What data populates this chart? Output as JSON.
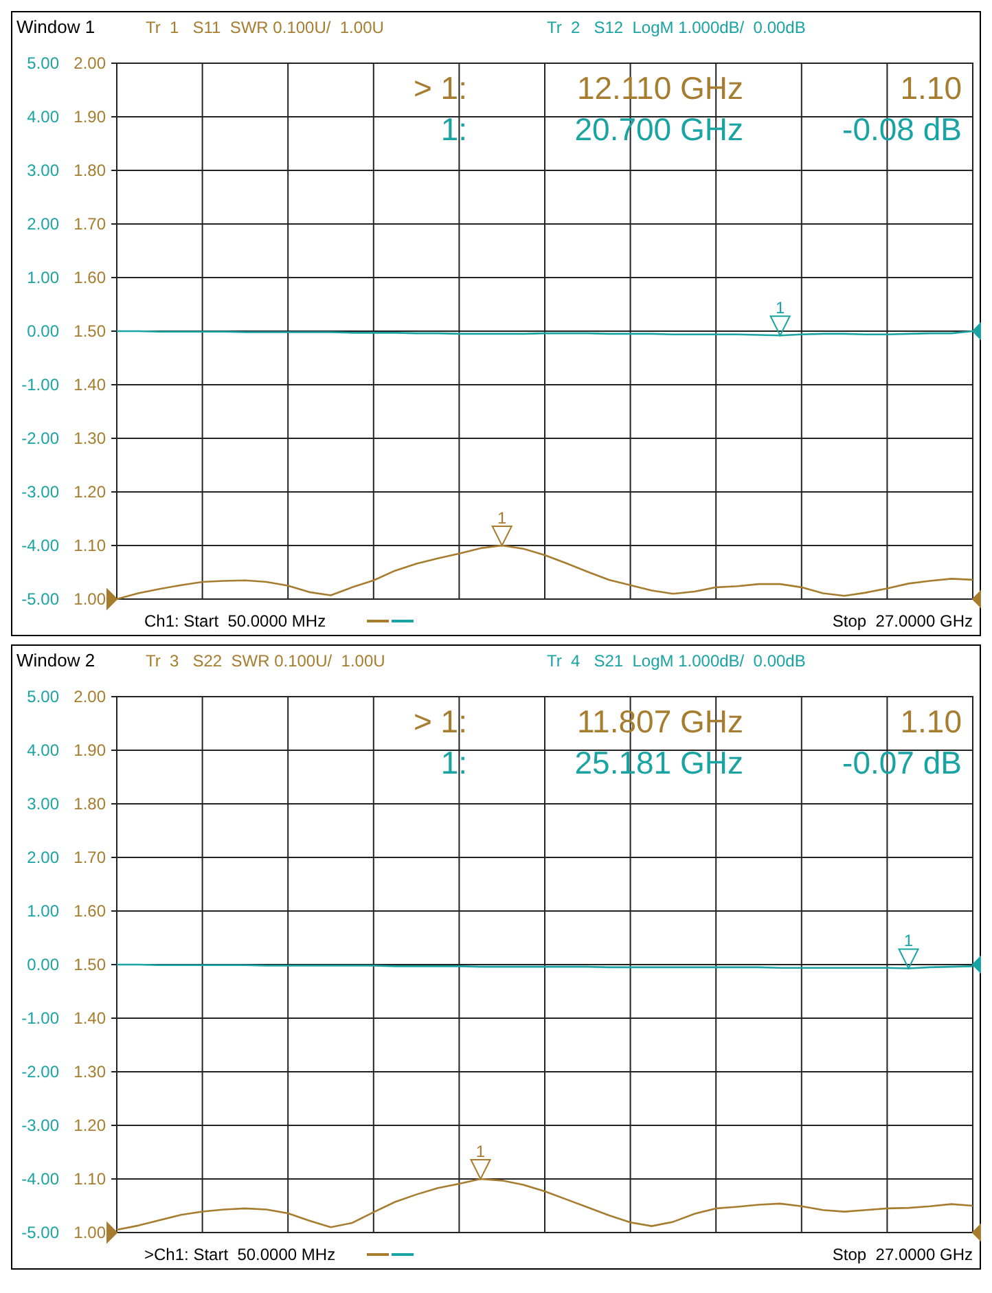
{
  "chart_data": [
    {
      "type": "line",
      "title": "Window 1",
      "categories": [
        null,
        null,
        null,
        null,
        null,
        null,
        null,
        null,
        null,
        null,
        null,
        null,
        null,
        null,
        null,
        null,
        null,
        null,
        null,
        null,
        null,
        null,
        null,
        null,
        null,
        null,
        null,
        null,
        null,
        null,
        null,
        null,
        null,
        null,
        null,
        null,
        null,
        null,
        null,
        null,
        null
      ],
      "ylim": [
        1,
        2
      ],
      "yticks": [
        {
          "value": 1,
          "label": "1.00"
        },
        {
          "value": 1.1,
          "label": "1.10"
        },
        {
          "value": 1.2,
          "label": "1.20"
        },
        {
          "value": 1.3,
          "label": "1.30"
        },
        {
          "value": 1.4,
          "label": "1.40"
        },
        {
          "value": 1.5,
          "label": "1.50"
        },
        {
          "value": 1.6,
          "label": "1.60"
        },
        {
          "value": 1.7,
          "label": "1.70"
        },
        {
          "value": 1.8,
          "label": "1.80"
        },
        {
          "value": 1.9,
          "label": "1.90"
        },
        {
          "value": 2,
          "label": "2.00"
        }
      ],
      "y2lim": [
        -5,
        5
      ],
      "y2ticks": [
        {
          "value": -5,
          "label": "-5.00"
        },
        {
          "value": -4,
          "label": "-4.00"
        },
        {
          "value": -3,
          "label": "-3.00"
        },
        {
          "value": -2,
          "label": "-2.00"
        },
        {
          "value": -1,
          "label": "-1.00"
        },
        {
          "value": 0,
          "label": "0.00"
        },
        {
          "value": 1,
          "label": "1.00"
        },
        {
          "value": 2,
          "label": "2.00"
        },
        {
          "value": 3,
          "label": "3.00"
        },
        {
          "value": 4,
          "label": "4.00"
        },
        {
          "value": 5,
          "label": "5.00"
        }
      ],
      "grid": true,
      "line_style": "solid",
      "series": [
        {
          "name": "Tr  1   S11  SWR 0.100U/  1.00U",
          "color": "#a67c2e",
          "values": [
            1.0,
            1.011,
            1.019,
            1.026,
            1.032,
            1.034,
            1.035,
            1.032,
            1.025,
            1.013,
            1.007,
            1.022,
            1.035,
            1.053,
            1.066,
            1.076,
            1.085,
            1.095,
            1.1,
            1.094,
            1.082,
            1.067,
            1.051,
            1.036,
            1.026,
            1.016,
            1.01,
            1.014,
            1.022,
            1.024,
            1.028,
            1.028,
            1.022,
            1.011,
            1.006,
            1.012,
            1.02,
            1.029,
            1.034,
            1.038,
            1.036
          ]
        },
        {
          "name": "Tr  2   S12  LogM 1.000dB/  0.00dB",
          "color": "#1aa3a3",
          "axis": "y2",
          "values": [
            0,
            0,
            -0.01,
            -0.01,
            -0.01,
            -0.01,
            -0.02,
            -0.02,
            -0.02,
            -0.02,
            -0.02,
            -0.03,
            -0.03,
            -0.03,
            -0.04,
            -0.04,
            -0.05,
            -0.05,
            -0.05,
            -0.05,
            -0.04,
            -0.04,
            -0.04,
            -0.05,
            -0.05,
            -0.05,
            -0.06,
            -0.06,
            -0.06,
            -0.06,
            -0.07,
            -0.08,
            -0.06,
            -0.05,
            -0.05,
            -0.06,
            -0.06,
            -0.05,
            -0.04,
            -0.04,
            0
          ]
        }
      ],
      "annotations": [
        "> 1:",
        "12.110 GHz",
        "1.10",
        "1:",
        "20.700 GHz",
        "-0.08 dB",
        "Ch1: Start  50.0000 MHz",
        "Stop  27.0000 GHz",
        {
          "text": "1",
          "y": 1.1
        },
        "1"
      ]
    },
    {
      "type": "line",
      "title": "Window 2",
      "categories": [
        null,
        null,
        null,
        null,
        null,
        null,
        null,
        null,
        null,
        null,
        null,
        null,
        null,
        null,
        null,
        null,
        null,
        null,
        null,
        null,
        null,
        null,
        null,
        null,
        null,
        null,
        null,
        null,
        null,
        null,
        null,
        null,
        null,
        null,
        null,
        null,
        null,
        null,
        null,
        null,
        null
      ],
      "ylim": [
        1,
        2
      ],
      "yticks": [
        {
          "value": 1,
          "label": "1.00"
        },
        {
          "value": 1.1,
          "label": "1.10"
        },
        {
          "value": 1.2,
          "label": "1.20"
        },
        {
          "value": 1.3,
          "label": "1.30"
        },
        {
          "value": 1.4,
          "label": "1.40"
        },
        {
          "value": 1.5,
          "label": "1.50"
        },
        {
          "value": 1.6,
          "label": "1.60"
        },
        {
          "value": 1.7,
          "label": "1.70"
        },
        {
          "value": 1.8,
          "label": "1.80"
        },
        {
          "value": 1.9,
          "label": "1.90"
        },
        {
          "value": 2,
          "label": "2.00"
        }
      ],
      "y2lim": [
        -5,
        5
      ],
      "y2ticks": [
        {
          "value": -5,
          "label": "-5.00"
        },
        {
          "value": -4,
          "label": "-4.00"
        },
        {
          "value": -3,
          "label": "-3.00"
        },
        {
          "value": -2,
          "label": "-2.00"
        },
        {
          "value": -1,
          "label": "-1.00"
        },
        {
          "value": 0,
          "label": "0.00"
        },
        {
          "value": 1,
          "label": "1.00"
        },
        {
          "value": 2,
          "label": "2.00"
        },
        {
          "value": 3,
          "label": "3.00"
        },
        {
          "value": 4,
          "label": "4.00"
        },
        {
          "value": 5,
          "label": "5.00"
        }
      ],
      "grid": true,
      "line_style": "solid",
      "series": [
        {
          "name": "Tr  3   S22  SWR 0.100U/  1.00U",
          "color": "#a67c2e",
          "values": [
            1.005,
            1.013,
            1.023,
            1.033,
            1.039,
            1.043,
            1.045,
            1.043,
            1.036,
            1.022,
            1.01,
            1.018,
            1.038,
            1.057,
            1.071,
            1.083,
            1.091,
            1.1,
            1.097,
            1.089,
            1.077,
            1.062,
            1.047,
            1.032,
            1.019,
            1.012,
            1.02,
            1.035,
            1.045,
            1.048,
            1.052,
            1.054,
            1.049,
            1.042,
            1.039,
            1.042,
            1.045,
            1.046,
            1.049,
            1.053,
            1.05
          ]
        },
        {
          "name": "Tr  4   S21  LogM 1.000dB/  0.00dB",
          "color": "#1aa3a3",
          "axis": "y2",
          "values": [
            0,
            0,
            -0.01,
            -0.01,
            -0.01,
            -0.01,
            -0.01,
            -0.02,
            -0.02,
            -0.02,
            -0.02,
            -0.02,
            -0.02,
            -0.03,
            -0.03,
            -0.03,
            -0.03,
            -0.04,
            -0.04,
            -0.04,
            -0.04,
            -0.04,
            -0.04,
            -0.05,
            -0.05,
            -0.05,
            -0.05,
            -0.05,
            -0.05,
            -0.05,
            -0.05,
            -0.06,
            -0.06,
            -0.06,
            -0.06,
            -0.06,
            -0.06,
            -0.07,
            -0.05,
            -0.04,
            -0.03
          ]
        }
      ],
      "annotations": [
        "> 1:",
        "11.807 GHz",
        "1.10",
        "1:",
        "25.181 GHz",
        "-0.07 dB",
        ">Ch1: Start  50.0000 MHz",
        "Stop  27.0000 GHz",
        {
          "text": "1",
          "y": 1.1
        },
        "1"
      ]
    }
  ]
}
